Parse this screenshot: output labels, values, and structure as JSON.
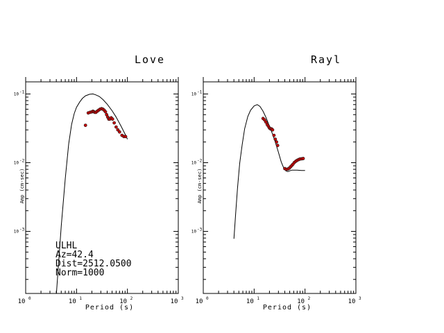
{
  "figure": {
    "info_lines": [
      "ULHL",
      "Az=42.4",
      "Dist=2512.0500",
      "Norm=1000"
    ]
  },
  "chart_data": [
    {
      "type": "line",
      "title": "Love",
      "xlabel": "Period (s)",
      "ylabel": "Amp (cm-sec)",
      "xscale": "log",
      "yscale": "log",
      "xlim": [
        1,
        1000
      ],
      "ylim": [
        0.000125,
        0.15
      ],
      "xticks": [
        {
          "base": "10",
          "exp": "0"
        },
        {
          "base": "10",
          "exp": "1"
        },
        {
          "base": "10",
          "exp": "2"
        },
        {
          "base": "10",
          "exp": "3"
        }
      ],
      "yticks": [
        {
          "value": 0.1,
          "base": "10",
          "exp": "-1"
        },
        {
          "value": 0.01,
          "base": "10",
          "exp": "-2"
        },
        {
          "value": 0.001,
          "base": "10",
          "exp": "-3"
        }
      ],
      "series": [
        {
          "kind": "model-curve",
          "color": "#000000",
          "x": [
            4.0,
            4.5,
            5.0,
            6.0,
            7.0,
            8.0,
            9.0,
            10.0,
            11.5,
            13.0,
            15.0,
            18.0,
            21.0,
            24.0,
            28.0,
            33.0,
            40.0,
            50.0,
            60.0,
            75.0,
            90.0,
            100.0
          ],
          "y": [
            0.00012,
            0.0004,
            0.0012,
            0.0059,
            0.0187,
            0.036,
            0.052,
            0.064,
            0.076,
            0.086,
            0.094,
            0.099,
            0.1,
            0.097,
            0.092,
            0.083,
            0.071,
            0.057,
            0.046,
            0.034,
            0.026,
            0.022
          ]
        },
        {
          "kind": "observed",
          "color": "#c00000",
          "x": [
            15.0,
            17.0,
            18.5,
            20.0,
            21.0,
            22.0,
            23.0,
            24.0,
            25.5,
            27.0,
            29.0,
            31.0,
            33.0,
            35.0,
            37.0,
            39.0,
            41.0,
            43.0,
            45.0,
            48.0,
            51.0,
            55.0,
            60.0,
            65.0,
            70.0,
            78.0,
            85.0,
            92.0
          ],
          "y": [
            0.035,
            0.053,
            0.054,
            0.055,
            0.056,
            0.055,
            0.054,
            0.054,
            0.056,
            0.058,
            0.06,
            0.061,
            0.06,
            0.058,
            0.055,
            0.05,
            0.046,
            0.043,
            0.043,
            0.045,
            0.043,
            0.038,
            0.033,
            0.03,
            0.028,
            0.025,
            0.024,
            0.024
          ]
        }
      ]
    },
    {
      "type": "line",
      "title": "Rayl",
      "xlabel": "Period (s)",
      "ylabel": "Amp (cm-sec)",
      "xscale": "log",
      "yscale": "log",
      "xlim": [
        1,
        1000
      ],
      "ylim": [
        0.000125,
        0.15
      ],
      "xticks": [
        {
          "base": "10",
          "exp": "0"
        },
        {
          "base": "10",
          "exp": "1"
        },
        {
          "base": "10",
          "exp": "2"
        },
        {
          "base": "10",
          "exp": "3"
        }
      ],
      "yticks": [
        {
          "value": 0.1,
          "base": "10",
          "exp": "-1"
        },
        {
          "value": 0.01,
          "base": "10",
          "exp": "-2"
        },
        {
          "value": 0.001,
          "base": "10",
          "exp": "-3"
        }
      ],
      "series": [
        {
          "kind": "model-curve",
          "color": "#000000",
          "x": [
            4.0,
            4.3,
            4.7,
            5.2,
            5.8,
            6.5,
            7.5,
            8.5,
            10.0,
            11.5,
            13.0,
            15.0,
            17.0,
            20.0,
            23.0,
            26.0,
            30.0,
            34.0,
            38.0,
            42.0,
            46.0,
            50.0,
            55.0,
            60.0,
            70.0,
            85.0,
            100.0
          ],
          "y": [
            0.00078,
            0.0017,
            0.0042,
            0.0098,
            0.018,
            0.031,
            0.047,
            0.058,
            0.067,
            0.07,
            0.066,
            0.056,
            0.046,
            0.034,
            0.026,
            0.02,
            0.0142,
            0.0103,
            0.0084,
            0.0076,
            0.0074,
            0.0076,
            0.0078,
            0.0078,
            0.0078,
            0.0077,
            0.0077
          ]
        },
        {
          "kind": "observed",
          "color": "#c00000",
          "x": [
            15.0,
            16.0,
            17.0,
            18.0,
            19.0,
            20.0,
            21.0,
            22.0,
            23.0,
            24.5,
            26.0,
            27.5,
            29.0,
            40.0,
            43.0,
            46.0,
            49.0,
            52.0,
            55.0,
            58.0,
            62.0,
            66.0,
            70.0,
            75.0,
            80.0,
            86.0,
            92.0
          ],
          "y": [
            0.044,
            0.042,
            0.039,
            0.036,
            0.034,
            0.032,
            0.031,
            0.031,
            0.03,
            0.025,
            0.022,
            0.02,
            0.0178,
            0.0082,
            0.008,
            0.0081,
            0.0083,
            0.0087,
            0.0091,
            0.0095,
            0.0101,
            0.0105,
            0.0108,
            0.0111,
            0.0113,
            0.0114,
            0.0115
          ]
        }
      ]
    }
  ]
}
